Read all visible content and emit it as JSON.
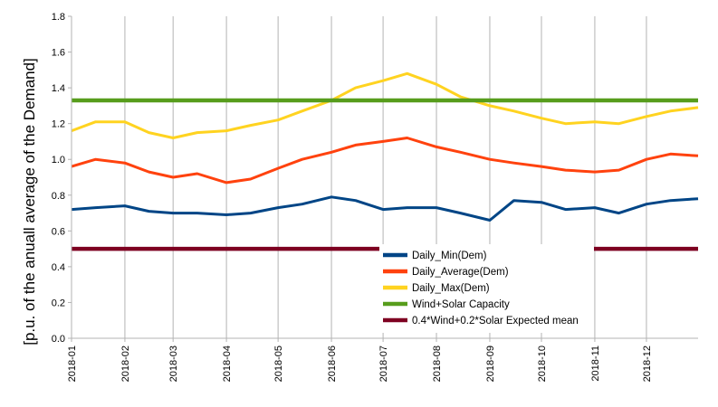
{
  "chart_data": {
    "type": "line",
    "ylabel": "[p.u. of the anuall average of the Demand]",
    "ylim": [
      0.0,
      1.8
    ],
    "yticks": [
      "0.0",
      "0.2",
      "0.4",
      "0.6",
      "0.8",
      "1.0",
      "1.2",
      "1.4",
      "1.6",
      "1.8"
    ],
    "xticks": [
      "2018-01",
      "2018-02",
      "2018-03",
      "2018-04",
      "2018-05",
      "2018-06",
      "2018-07",
      "2018-08",
      "2018-09",
      "2018-10",
      "2018-11",
      "2018-12"
    ],
    "grid": "vertical",
    "legend_position": "bottom-center",
    "colors": {
      "min": "#004586",
      "avg": "#ff420e",
      "max": "#ffd320",
      "capacity": "#579d1c",
      "expected": "#7e0021",
      "grid": "#b3b3b3"
    },
    "series": [
      {
        "name": "Daily_Min(Dem)",
        "points": [
          [
            "2018-01-01",
            0.72
          ],
          [
            "2018-01-15",
            0.73
          ],
          [
            "2018-02-01",
            0.74
          ],
          [
            "2018-02-15",
            0.71
          ],
          [
            "2018-03-01",
            0.7
          ],
          [
            "2018-03-15",
            0.7
          ],
          [
            "2018-04-01",
            0.69
          ],
          [
            "2018-04-15",
            0.7
          ],
          [
            "2018-05-01",
            0.73
          ],
          [
            "2018-05-15",
            0.75
          ],
          [
            "2018-06-01",
            0.79
          ],
          [
            "2018-06-15",
            0.77
          ],
          [
            "2018-07-01",
            0.72
          ],
          [
            "2018-07-15",
            0.73
          ],
          [
            "2018-08-01",
            0.73
          ],
          [
            "2018-08-15",
            0.7
          ],
          [
            "2018-09-01",
            0.66
          ],
          [
            "2018-09-15",
            0.77
          ],
          [
            "2018-10-01",
            0.76
          ],
          [
            "2018-10-15",
            0.72
          ],
          [
            "2018-11-01",
            0.73
          ],
          [
            "2018-11-15",
            0.7
          ],
          [
            "2018-12-01",
            0.75
          ],
          [
            "2018-12-15",
            0.77
          ],
          [
            "2018-12-31",
            0.78
          ]
        ]
      },
      {
        "name": "Daily_Average(Dem)",
        "points": [
          [
            "2018-01-01",
            0.96
          ],
          [
            "2018-01-15",
            1.0
          ],
          [
            "2018-02-01",
            0.98
          ],
          [
            "2018-02-15",
            0.93
          ],
          [
            "2018-03-01",
            0.9
          ],
          [
            "2018-03-15",
            0.92
          ],
          [
            "2018-04-01",
            0.87
          ],
          [
            "2018-04-15",
            0.89
          ],
          [
            "2018-05-01",
            0.95
          ],
          [
            "2018-05-15",
            1.0
          ],
          [
            "2018-06-01",
            1.04
          ],
          [
            "2018-06-15",
            1.08
          ],
          [
            "2018-07-01",
            1.1
          ],
          [
            "2018-07-15",
            1.12
          ],
          [
            "2018-08-01",
            1.07
          ],
          [
            "2018-08-15",
            1.04
          ],
          [
            "2018-09-01",
            1.0
          ],
          [
            "2018-09-15",
            0.98
          ],
          [
            "2018-10-01",
            0.96
          ],
          [
            "2018-10-15",
            0.94
          ],
          [
            "2018-11-01",
            0.93
          ],
          [
            "2018-11-15",
            0.94
          ],
          [
            "2018-12-01",
            1.0
          ],
          [
            "2018-12-15",
            1.03
          ],
          [
            "2018-12-31",
            1.02
          ]
        ]
      },
      {
        "name": "Daily_Max(Dem)",
        "points": [
          [
            "2018-01-01",
            1.16
          ],
          [
            "2018-01-15",
            1.21
          ],
          [
            "2018-02-01",
            1.21
          ],
          [
            "2018-02-15",
            1.15
          ],
          [
            "2018-03-01",
            1.12
          ],
          [
            "2018-03-15",
            1.15
          ],
          [
            "2018-04-01",
            1.16
          ],
          [
            "2018-04-15",
            1.19
          ],
          [
            "2018-05-01",
            1.22
          ],
          [
            "2018-05-15",
            1.27
          ],
          [
            "2018-06-01",
            1.33
          ],
          [
            "2018-06-15",
            1.4
          ],
          [
            "2018-07-01",
            1.44
          ],
          [
            "2018-07-15",
            1.48
          ],
          [
            "2018-08-01",
            1.42
          ],
          [
            "2018-08-15",
            1.35
          ],
          [
            "2018-09-01",
            1.3
          ],
          [
            "2018-09-15",
            1.27
          ],
          [
            "2018-10-01",
            1.23
          ],
          [
            "2018-10-15",
            1.2
          ],
          [
            "2018-11-01",
            1.21
          ],
          [
            "2018-11-15",
            1.2
          ],
          [
            "2018-12-01",
            1.24
          ],
          [
            "2018-12-15",
            1.27
          ],
          [
            "2018-12-31",
            1.29
          ]
        ]
      },
      {
        "name": "Wind+Solar Capacity",
        "points": [
          [
            "2018-01-01",
            1.33
          ],
          [
            "2018-12-31",
            1.33
          ]
        ]
      },
      {
        "name": "0.4*Wind+0.2*Solar  Expected mean",
        "points": [
          [
            "2018-01-01",
            0.5
          ],
          [
            "2018-12-31",
            0.5
          ]
        ]
      }
    ]
  }
}
